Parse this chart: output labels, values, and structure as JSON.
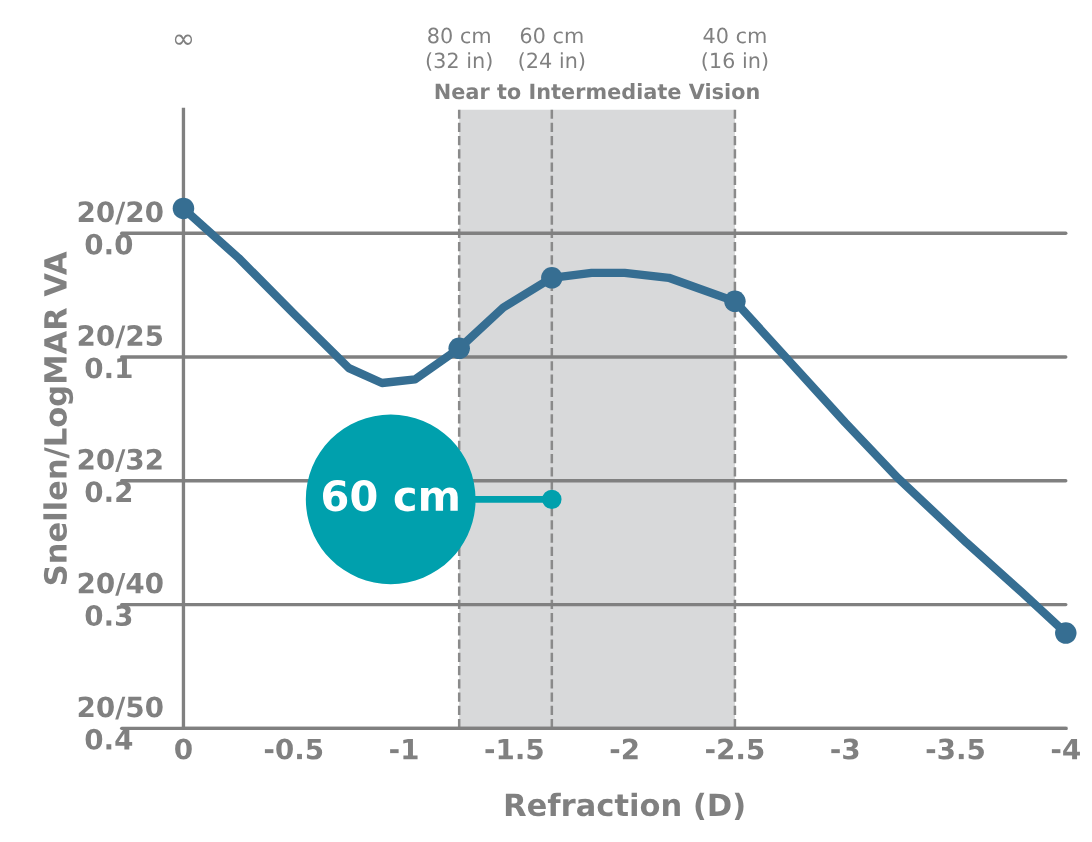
{
  "chart_data": {
    "type": "line",
    "xlabel": "Refraction (D)",
    "ylabel": "Snellen/LogMAR VA",
    "xlim": [
      0,
      -4.0
    ],
    "xticks": [
      0,
      -0.5,
      -1,
      -1.5,
      -2,
      -2.5,
      -3,
      -3.5,
      -4
    ],
    "ylim": [
      0.4,
      -0.1
    ],
    "yticks": [
      {
        "value": 0.0,
        "label": "0.0"
      },
      {
        "value": 0.1,
        "label": "0.1"
      },
      {
        "value": 0.2,
        "label": "0.2"
      },
      {
        "value": 0.3,
        "label": "0.3"
      },
      {
        "value": 0.4,
        "label": "0.4"
      }
    ],
    "grid": "y",
    "series": [
      {
        "color": "#366e92",
        "marker": "none",
        "x": [
          0,
          -0.25,
          -0.5,
          -0.75,
          -0.9,
          -1.05,
          -1.25,
          -1.45,
          -1.67,
          -1.85,
          -2.0,
          -2.2,
          -2.5,
          -2.75,
          -3.0,
          -3.24,
          -3.55,
          -3.8,
          -4.0
        ],
        "values": [
          -0.02,
          0.02,
          0.065,
          0.109,
          0.121,
          0.118,
          0.093,
          0.06,
          0.036,
          0.032,
          0.032,
          0.036,
          0.055,
          0.104,
          0.153,
          0.198,
          0.25,
          0.29,
          0.323
        ]
      },
      {
        "type": "scatter",
        "color": "#366e92",
        "marker": "circle",
        "x": [
          0,
          -1.25,
          -1.67,
          -2.5,
          -4.0
        ],
        "values": [
          -0.02,
          0.093,
          0.036,
          0.055,
          0.323
        ]
      }
    ],
    "bands": [
      {
        "axis": "x",
        "from": -1.25,
        "to": -2.5,
        "label": "Near to Intermediate Vision",
        "color": "#d8d9da"
      }
    ],
    "ref_lines": [
      {
        "axis": "x",
        "value": -1.25,
        "label": "80 cm\n(32 in)",
        "line_style": "dashed",
        "color": "#8a8a8a"
      },
      {
        "axis": "x",
        "value": -1.67,
        "label": "60 cm\n(24 in)",
        "line_style": "dashed",
        "color": "#8a8a8a"
      },
      {
        "axis": "x",
        "value": -2.5,
        "label": "40 cm\n(16 in)",
        "line_style": "dashed",
        "color": "#8a8a8a"
      }
    ],
    "annotations": [
      {
        "text": "60 cm",
        "x": -1.67,
        "y": 0.215
      },
      "∞",
      "20/20",
      "20/25",
      "20/32",
      "20/40",
      "20/50"
    ]
  }
}
